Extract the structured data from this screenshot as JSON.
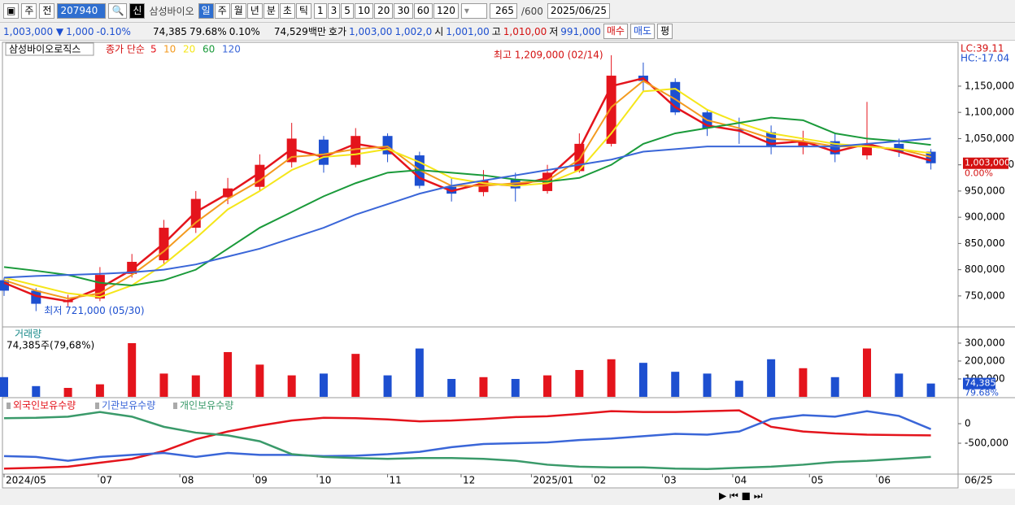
{
  "toolbar": {
    "market": "주",
    "mode": "전",
    "code": "207940",
    "name": "삼성바이오",
    "new_badge": "신",
    "periods": [
      "일",
      "주",
      "월",
      "년",
      "분",
      "초",
      "틱"
    ],
    "intervals": [
      "1",
      "3",
      "5",
      "10",
      "20",
      "30",
      "60",
      "120"
    ],
    "count": "265",
    "max_count": "/600",
    "date": "2025/06/25"
  },
  "info_bar": {
    "price": "1,003,000 ▼",
    "change": "1,000",
    "change_pct": "-0.10%",
    "volume": "74,385",
    "volume_ratio": "79.68%",
    "turnover_pct": "0.10%",
    "amount": "74,529백만",
    "quote_label": "호가",
    "ask": "1,003,00",
    "bid": "1,002,0",
    "open_label": "시",
    "open": "1,001,00",
    "high_label": "고",
    "high": "1,010,00",
    "low_label": "저",
    "low": "991,000",
    "buy": "매수",
    "sell": "매도",
    "avg": "평"
  },
  "chart_data": [
    {
      "type": "candlestick",
      "title": "삼성바이오로직스",
      "ma_title": "종가 단순",
      "lc_label": "LC:39.11",
      "hc_label": "HC:-17.04",
      "x": [
        0,
        1,
        2,
        3,
        4,
        5,
        6,
        7,
        8,
        9,
        10,
        11,
        12,
        13,
        14,
        15,
        16,
        17,
        18,
        19,
        20,
        21,
        22,
        23,
        24,
        25,
        26,
        27,
        28,
        29
      ],
      "xlim": [
        0,
        29.85
      ],
      "xticks": [
        {
          "value": 0,
          "label": "2024/05"
        },
        {
          "value": 2.95,
          "label": "07"
        },
        {
          "value": 5.5,
          "label": "08"
        },
        {
          "value": 7.8,
          "label": "09"
        },
        {
          "value": 9.8,
          "label": "10"
        },
        {
          "value": 12,
          "label": "11"
        },
        {
          "value": 14.3,
          "label": "12"
        },
        {
          "value": 16.5,
          "label": "2025/01"
        },
        {
          "value": 18.4,
          "label": "02"
        },
        {
          "value": 20.6,
          "label": "03"
        },
        {
          "value": 22.8,
          "label": "04"
        },
        {
          "value": 25.2,
          "label": "05"
        },
        {
          "value": 27.3,
          "label": "06"
        }
      ],
      "last_date_label": "06/25",
      "ylim": [
        694000,
        1229000
      ],
      "yticks": [
        {
          "value": 750000,
          "label": "750,000"
        },
        {
          "value": 800000,
          "label": "800,000"
        },
        {
          "value": 850000,
          "label": "850,000"
        },
        {
          "value": 900000,
          "label": "900,000"
        },
        {
          "value": 950000,
          "label": "950,000"
        },
        {
          "value": 1000000,
          "label": "1,000,000"
        },
        {
          "value": 1050000,
          "label": "1,050,000"
        },
        {
          "value": 1100000,
          "label": "1,100,000"
        },
        {
          "value": 1150000,
          "label": "1,150,000"
        }
      ],
      "up_color": "#e4141c",
      "down_color": "#1d4fd0",
      "open": [
        780000,
        760000,
        738000,
        745000,
        792000,
        818000,
        880000,
        938000,
        958000,
        1005000,
        1048000,
        1000000,
        1055000,
        1018000,
        958000,
        948000,
        972000,
        950000,
        988000,
        1040000,
        1170000,
        1158000,
        1100000,
        1068000,
        1062000,
        1035000,
        1045000,
        1018000,
        1040000,
        1025000
      ],
      "high": [
        785000,
        765000,
        752000,
        805000,
        830000,
        895000,
        950000,
        975000,
        1020000,
        1080000,
        1055000,
        1070000,
        1060000,
        1025000,
        975000,
        990000,
        985000,
        1000000,
        1060000,
        1209000,
        1195000,
        1165000,
        1105000,
        1090000,
        1075000,
        1065000,
        1060000,
        1120000,
        1050000,
        1030000
      ],
      "low": [
        750000,
        721000,
        730000,
        740000,
        785000,
        810000,
        870000,
        925000,
        950000,
        995000,
        985000,
        995000,
        1005000,
        955000,
        930000,
        940000,
        930000,
        945000,
        985000,
        1035000,
        1140000,
        1095000,
        1055000,
        1040000,
        1020000,
        1020000,
        1005000,
        1010000,
        1015000,
        991000
      ],
      "close": [
        760000,
        735000,
        742000,
        790000,
        815000,
        880000,
        935000,
        955000,
        1000000,
        1050000,
        1000000,
        1055000,
        1020000,
        960000,
        945000,
        970000,
        955000,
        985000,
        1040000,
        1170000,
        1160000,
        1100000,
        1070000,
        1065000,
        1035000,
        1045000,
        1020000,
        1040000,
        1025000,
        1003000
      ],
      "ma": [
        {
          "name": "5",
          "color": "#e4141c",
          "values": [
            775000,
            750000,
            740000,
            765000,
            800000,
            850000,
            910000,
            945000,
            985000,
            1030000,
            1015000,
            1040000,
            1030000,
            975000,
            950000,
            965000,
            960000,
            975000,
            1030000,
            1150000,
            1165000,
            1110000,
            1075000,
            1065000,
            1040000,
            1045000,
            1025000,
            1040000,
            1025000,
            1008000
          ]
        },
        {
          "name": "10",
          "color": "#f39a1e",
          "values": [
            780000,
            760000,
            745000,
            755000,
            790000,
            835000,
            890000,
            935000,
            970000,
            1015000,
            1020000,
            1030000,
            1035000,
            990000,
            960000,
            960000,
            965000,
            970000,
            1010000,
            1110000,
            1160000,
            1125000,
            1085000,
            1070000,
            1050000,
            1045000,
            1035000,
            1035000,
            1030000,
            1015000
          ]
        },
        {
          "name": "20",
          "color": "#f5e61a",
          "values": [
            785000,
            770000,
            755000,
            748000,
            770000,
            810000,
            860000,
            915000,
            950000,
            990000,
            1015000,
            1020000,
            1030000,
            1005000,
            975000,
            965000,
            960000,
            965000,
            990000,
            1060000,
            1140000,
            1145000,
            1105000,
            1080000,
            1060000,
            1050000,
            1040000,
            1035000,
            1030000,
            1022000
          ]
        },
        {
          "name": "60",
          "color": "#1a9a3a",
          "values": [
            805000,
            798000,
            790000,
            775000,
            770000,
            780000,
            800000,
            840000,
            880000,
            910000,
            940000,
            965000,
            985000,
            990000,
            985000,
            980000,
            972000,
            968000,
            975000,
            1000000,
            1040000,
            1060000,
            1070000,
            1080000,
            1090000,
            1085000,
            1060000,
            1050000,
            1045000,
            1038000
          ]
        },
        {
          "name": "120",
          "color": "#3a66d8",
          "values": [
            785000,
            788000,
            790000,
            792000,
            795000,
            800000,
            810000,
            825000,
            840000,
            860000,
            880000,
            905000,
            925000,
            945000,
            960000,
            970000,
            980000,
            990000,
            1000000,
            1010000,
            1025000,
            1030000,
            1035000,
            1035000,
            1035000,
            1035000,
            1035000,
            1040000,
            1045000,
            1050000
          ]
        }
      ],
      "annotations": [
        {
          "text": "최고 1,209,000 (02/14)",
          "x": 19,
          "y": 1209000
        },
        {
          "text": "최저 721,000 (05/30)",
          "x": 1,
          "y": 721000
        }
      ],
      "last_price": 1003000,
      "last_price_label": "1,003,000",
      "last_change_label": "0.00%"
    },
    {
      "type": "bar",
      "title": "거래량",
      "subtitle": "74,385주(79,68%)",
      "x": [
        0,
        1,
        2,
        3,
        4,
        5,
        6,
        7,
        8,
        9,
        10,
        11,
        12,
        13,
        14,
        15,
        16,
        17,
        18,
        19,
        20,
        21,
        22,
        23,
        24,
        25,
        26,
        27,
        28,
        29
      ],
      "xlim": [
        0,
        29.85
      ],
      "values": [
        110000,
        60000,
        50000,
        70000,
        300000,
        130000,
        120000,
        250000,
        180000,
        120000,
        130000,
        240000,
        120000,
        270000,
        100000,
        110000,
        100000,
        120000,
        150000,
        210000,
        190000,
        140000,
        130000,
        90000,
        210000,
        160000,
        110000,
        270000,
        130000,
        74385
      ],
      "ylim": [
        0,
        377000
      ],
      "yticks": [
        {
          "value": 100000,
          "label": "100,000"
        },
        {
          "value": 200000,
          "label": "200,000"
        },
        {
          "value": 300000,
          "label": "300,000"
        }
      ],
      "last_value_label": "74,385",
      "last_ratio_label": "79.68%"
    },
    {
      "type": "line",
      "x": [
        0,
        1,
        2,
        3,
        4,
        5,
        6,
        7,
        8,
        9,
        10,
        11,
        12,
        13,
        14,
        15,
        16,
        17,
        18,
        19,
        20,
        21,
        22,
        23,
        24,
        25,
        26,
        27,
        28,
        29
      ],
      "xlim": [
        0,
        29.85
      ],
      "ylim": [
        -1270000,
        625000
      ],
      "yticks": [
        0,
        {
          "value": -500000,
          "label": "-500,000"
        }
      ],
      "series": [
        {
          "name": "외국인보유수량",
          "color": "#e4141c",
          "values": [
            -1150000,
            -1130000,
            -1100000,
            -1000000,
            -900000,
            -700000,
            -400000,
            -200000,
            -50000,
            80000,
            150000,
            140000,
            110000,
            60000,
            80000,
            120000,
            170000,
            190000,
            250000,
            320000,
            300000,
            300000,
            320000,
            340000,
            -80000,
            -200000,
            -250000,
            -280000,
            -290000,
            -300000
          ]
        },
        {
          "name": "기관보유수량",
          "color": "#3a66d8",
          "values": [
            -830000,
            -850000,
            -950000,
            -850000,
            -800000,
            -750000,
            -850000,
            -750000,
            -800000,
            -800000,
            -830000,
            -820000,
            -780000,
            -720000,
            -600000,
            -520000,
            -500000,
            -480000,
            -420000,
            -380000,
            -320000,
            -260000,
            -280000,
            -200000,
            120000,
            220000,
            180000,
            320000,
            200000,
            -140000
          ]
        },
        {
          "name": "개인보유수량",
          "color": "#3a9a6a",
          "values": [
            140000,
            150000,
            180000,
            300000,
            180000,
            -80000,
            -230000,
            -300000,
            -450000,
            -780000,
            -850000,
            -880000,
            -900000,
            -880000,
            -880000,
            -900000,
            -950000,
            -1050000,
            -1100000,
            -1120000,
            -1120000,
            -1150000,
            -1160000,
            -1130000,
            -1100000,
            -1050000,
            -980000,
            -950000,
            -900000,
            -850000
          ]
        }
      ]
    }
  ]
}
